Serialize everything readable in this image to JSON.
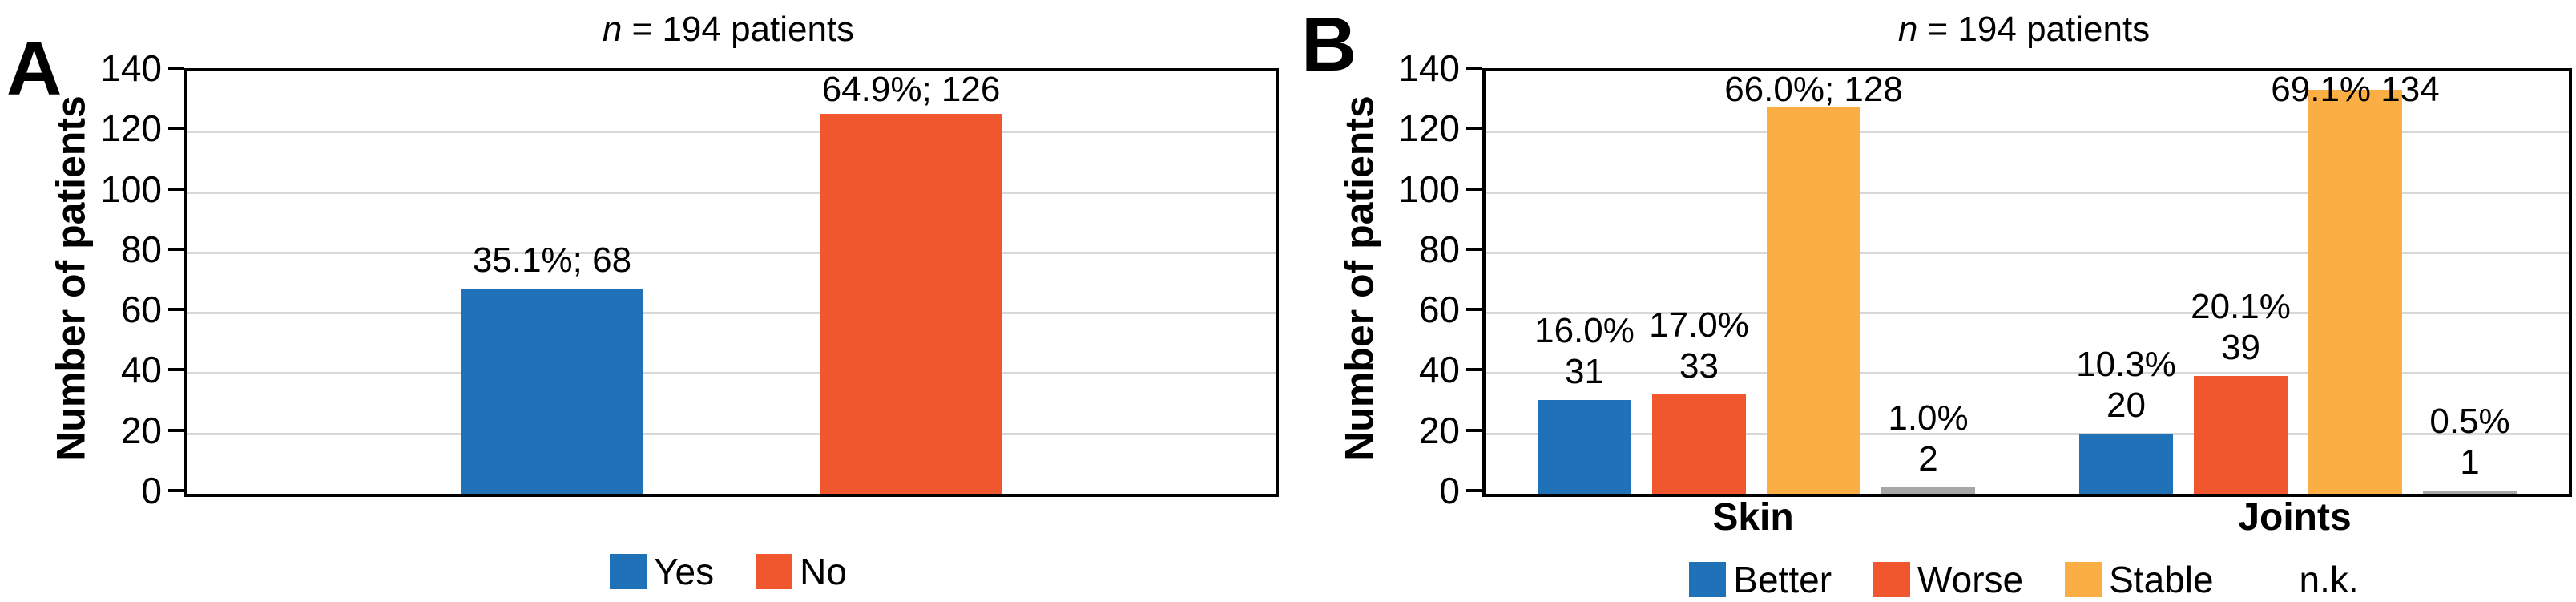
{
  "colors": {
    "blue": "#1F72B8",
    "red": "#F0572E",
    "orange": "#FAAE43",
    "gray": "#A7A7A7",
    "grid": "#D8D8D8",
    "axis": "#000000"
  },
  "chart_data": [
    {
      "type": "bar",
      "panel": "A",
      "title": "n = 194 patients",
      "title_italic_var": "n",
      "title_after_var": " = 194 patients",
      "xlabel": "",
      "ylabel": "Number of patients",
      "ylim": [
        0,
        140
      ],
      "yticks": [
        0,
        20,
        40,
        60,
        80,
        100,
        120,
        140
      ],
      "grid": true,
      "legend_position": "bottom",
      "categories": [
        ""
      ],
      "series": [
        {
          "name": "Yes",
          "color": "#1F72B8",
          "values": [
            68
          ],
          "value_labels": [
            [
              "35.1%; 68"
            ]
          ]
        },
        {
          "name": "No",
          "color": "#F0572E",
          "values": [
            126
          ],
          "value_labels": [
            [
              "64.9%; 126"
            ]
          ]
        }
      ],
      "legend": [
        {
          "label": "Yes",
          "color": "#1F72B8",
          "swatch": true
        },
        {
          "label": "No",
          "color": "#F0572E",
          "swatch": true
        }
      ]
    },
    {
      "type": "bar",
      "panel": "B",
      "title": "n = 194 patients",
      "title_italic_var": "n",
      "title_after_var": " = 194 patients",
      "xlabel": "",
      "ylabel": "Number of patients",
      "ylim": [
        0,
        140
      ],
      "yticks": [
        0,
        20,
        40,
        60,
        80,
        100,
        120,
        140
      ],
      "grid": true,
      "legend_position": "bottom",
      "categories": [
        "Skin",
        "Joints"
      ],
      "series": [
        {
          "name": "Better",
          "color": "#1F72B8",
          "values": [
            31,
            20
          ],
          "value_labels": [
            [
              "16.0%",
              "31"
            ],
            [
              "10.3%",
              "20"
            ]
          ]
        },
        {
          "name": "Worse",
          "color": "#F0572E",
          "values": [
            33,
            39
          ],
          "value_labels": [
            [
              "17.0%",
              "33"
            ],
            [
              "20.1%",
              "39"
            ]
          ]
        },
        {
          "name": "Stable",
          "color": "#FAAE43",
          "values": [
            128,
            134
          ],
          "value_labels": [
            [
              "66.0%; 128"
            ],
            [
              "69.1% 134"
            ]
          ]
        },
        {
          "name": "n.k.",
          "color": "#A7A7A7",
          "values": [
            2,
            1
          ],
          "value_labels": [
            [
              "1.0%",
              "2"
            ],
            [
              "0.5%",
              "1"
            ]
          ]
        }
      ],
      "legend": [
        {
          "label": "Better",
          "color": "#1F72B8",
          "swatch": true
        },
        {
          "label": "Worse",
          "color": "#F0572E",
          "swatch": true
        },
        {
          "label": "Stable",
          "color": "#FAAE43",
          "swatch": true
        },
        {
          "label": "n.k.",
          "color": "#A7A7A7",
          "swatch": false
        }
      ]
    }
  ]
}
